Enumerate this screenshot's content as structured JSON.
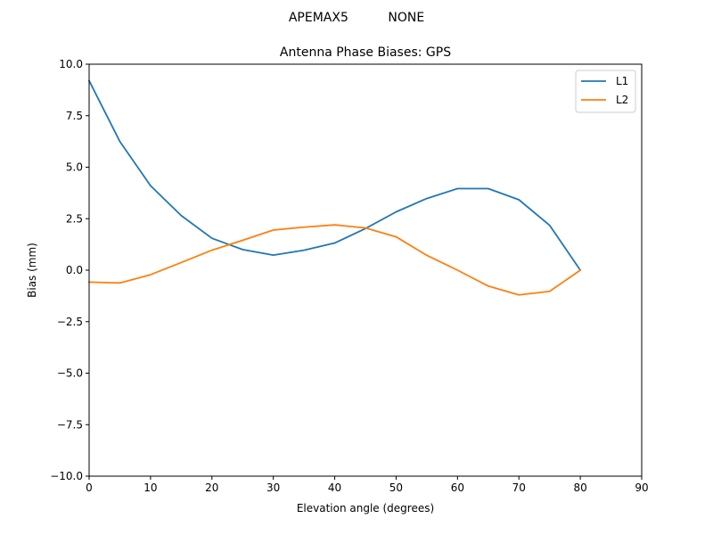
{
  "figure": {
    "suptitle": "APEMAX5          NONE"
  },
  "chart_data": {
    "type": "line",
    "title": "Antenna Phase Biases: GPS",
    "xlabel": "Elevation angle (degrees)",
    "ylabel": "Bias (mm)",
    "xlim": [
      0,
      90
    ],
    "ylim": [
      -10,
      10
    ],
    "xticks": [
      0,
      10,
      20,
      30,
      40,
      50,
      60,
      70,
      80,
      90
    ],
    "xtick_labels": [
      "0",
      "10",
      "20",
      "30",
      "40",
      "50",
      "60",
      "70",
      "80",
      "90"
    ],
    "yticks": [
      -10,
      -7.5,
      -5,
      -2.5,
      0,
      2.5,
      5,
      7.5,
      10
    ],
    "ytick_labels": [
      "−10.0",
      "−7.5",
      "−5.0",
      "−2.5",
      "0.0",
      "2.5",
      "5.0",
      "7.5",
      "10.0"
    ],
    "grid": false,
    "legend_position": "top-right",
    "x": [
      0,
      5,
      10,
      15,
      20,
      25,
      30,
      35,
      40,
      45,
      50,
      55,
      60,
      65,
      70,
      75,
      80
    ],
    "series": [
      {
        "name": "L1",
        "color": "#1f77b4",
        "values": [
          9.2,
          6.25,
          4.1,
          2.65,
          1.55,
          1.0,
          0.73,
          0.97,
          1.32,
          2.02,
          2.83,
          3.48,
          3.96,
          3.96,
          3.42,
          2.18,
          0.0
        ]
      },
      {
        "name": "L2",
        "color": "#ff7f0e",
        "values": [
          -0.58,
          -0.62,
          -0.22,
          0.37,
          0.97,
          1.45,
          1.95,
          2.09,
          2.2,
          2.05,
          1.62,
          0.72,
          0.0,
          -0.77,
          -1.2,
          -1.03,
          0.0
        ]
      }
    ]
  }
}
